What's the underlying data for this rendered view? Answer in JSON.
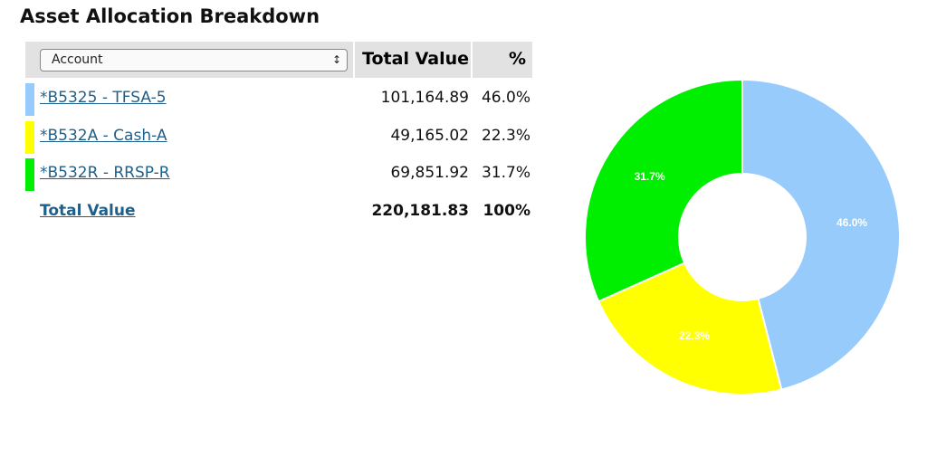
{
  "title": "Asset Allocation Breakdown",
  "table": {
    "header": {
      "select": "Account",
      "value": "Total Value",
      "percent": "%"
    },
    "rows": [
      {
        "account": "*B5325 - TFSA-5",
        "value": "101,164.89",
        "percent": "46.0%"
      },
      {
        "account": "*B532A - Cash-A",
        "value": "49,165.02",
        "percent": "22.3%"
      },
      {
        "account": "*B532R - RRSP-R",
        "value": "69,851.92",
        "percent": "31.7%"
      }
    ],
    "total": {
      "account": "Total Value",
      "value": "220,181.83",
      "percent": "100%"
    }
  },
  "chart_data": {
    "type": "donut",
    "values": [
      46.0,
      22.3,
      31.7
    ],
    "value_labels": [
      "46.0%",
      "22.3%",
      "31.7%"
    ],
    "colors": [
      "#96cbfb",
      "#ffff00",
      "#00ee00"
    ]
  }
}
